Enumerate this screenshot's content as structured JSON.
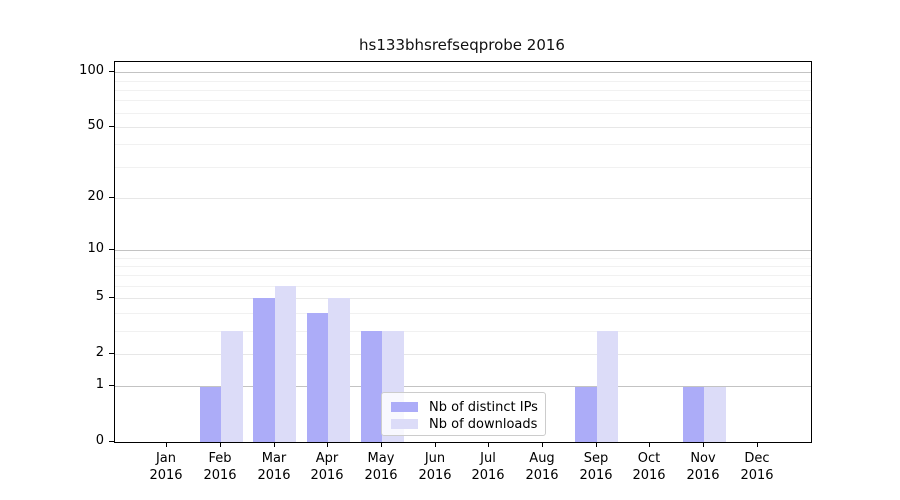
{
  "chart_data": {
    "type": "bar",
    "title": "hs133bhsrefseqprobe 2016",
    "x_year": "2016",
    "categories": [
      "Jan",
      "Feb",
      "Mar",
      "Apr",
      "May",
      "Jun",
      "Jul",
      "Aug",
      "Sep",
      "Oct",
      "Nov",
      "Dec"
    ],
    "series": [
      {
        "name": "Nb of distinct IPs",
        "color": "#acacf8",
        "values": [
          0,
          1,
          5,
          4,
          3,
          0,
          0,
          0,
          1,
          0,
          1,
          0
        ]
      },
      {
        "name": "Nb of downloads",
        "color": "#dcdcf8",
        "values": [
          0,
          3,
          6,
          5,
          3,
          0,
          0,
          0,
          3,
          0,
          1,
          0
        ]
      }
    ],
    "yscale": "log1p",
    "ylim": [
      0,
      113
    ],
    "yticks": [
      100,
      50,
      20,
      10,
      5,
      2,
      1,
      0
    ],
    "power_gridlines": [
      1,
      10,
      100
    ],
    "midlevel_gridlines": [
      2,
      5,
      20,
      50
    ],
    "minor_gridlines": [
      3,
      4,
      6,
      7,
      8,
      9,
      30,
      40,
      60,
      70,
      80,
      90
    ],
    "grid": true,
    "legend_position": "lower center"
  },
  "colors": {
    "grid_power": "#c3c3c3",
    "grid_mid": "#e7e7e7",
    "grid_minor": "#f1f1f1",
    "spine": "#000000",
    "background": "#ffffff"
  }
}
